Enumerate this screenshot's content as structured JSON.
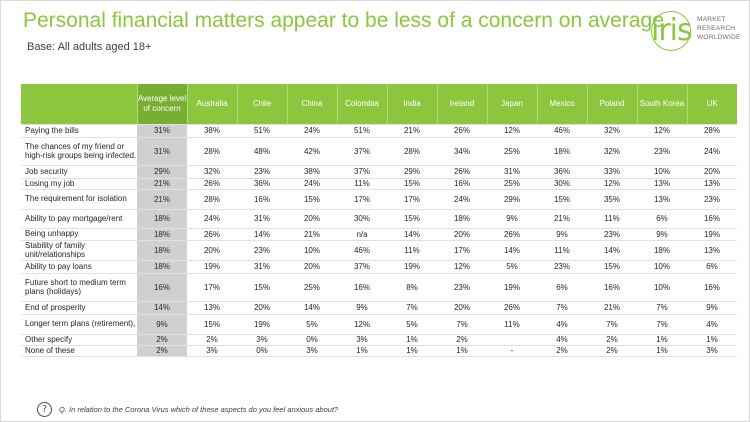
{
  "title": "Personal financial matters appear to be less of a concern on average",
  "subtitle": "Base: All adults aged 18+",
  "logo": {
    "mark": "iris",
    "lines": [
      "MARKET",
      "RESEARCH",
      "WORLDWIDE"
    ]
  },
  "colors": {
    "accent": "#8cc63f",
    "avg_column": "#d0d0d0"
  },
  "table": {
    "columns": [
      "Average level of concern",
      "Australia",
      "Chile",
      "China",
      "Colombia",
      "India",
      "Ireland",
      "Japan",
      "Mexico",
      "Poland",
      "South Korea",
      "UK"
    ],
    "rows": [
      {
        "label": "Paying the bills",
        "values": [
          "31%",
          "38%",
          "51%",
          "24%",
          "51%",
          "21%",
          "26%",
          "12%",
          "46%",
          "32%",
          "12%",
          "28%"
        ]
      },
      {
        "label": "The chances of my friend or high-risk groups being infected.",
        "values": [
          "31%",
          "28%",
          "48%",
          "42%",
          "37%",
          "28%",
          "34%",
          "25%",
          "18%",
          "32%",
          "23%",
          "24%"
        ]
      },
      {
        "label": "Job security",
        "values": [
          "29%",
          "32%",
          "23%",
          "38%",
          "37%",
          "29%",
          "26%",
          "31%",
          "36%",
          "33%",
          "10%",
          "20%"
        ]
      },
      {
        "label": "Losing my job",
        "values": [
          "21%",
          "26%",
          "36%",
          "24%",
          "11%",
          "15%",
          "16%",
          "25%",
          "30%",
          "12%",
          "13%",
          "13%"
        ]
      },
      {
        "label": "The requirement for isolation",
        "values": [
          "21%",
          "28%",
          "16%",
          "15%",
          "17%",
          "17%",
          "24%",
          "29%",
          "15%",
          "35%",
          "13%",
          "23%"
        ]
      },
      {
        "label": "Ability to pay mortgage/rent",
        "values": [
          "18%",
          "24%",
          "31%",
          "20%",
          "30%",
          "15%",
          "18%",
          "9%",
          "21%",
          "11%",
          "6%",
          "16%"
        ]
      },
      {
        "label": "Being unhappy",
        "values": [
          "18%",
          "26%",
          "14%",
          "21%",
          "n/a",
          "14%",
          "20%",
          "26%",
          "9%",
          "23%",
          "9%",
          "19%"
        ]
      },
      {
        "label": "Stability of family unit/relationships",
        "values": [
          "18%",
          "20%",
          "23%",
          "10%",
          "46%",
          "11%",
          "17%",
          "14%",
          "11%",
          "14%",
          "18%",
          "13%"
        ]
      },
      {
        "label": "Ability to pay loans",
        "values": [
          "18%",
          "19%",
          "31%",
          "20%",
          "37%",
          "19%",
          "12%",
          "5%",
          "23%",
          "15%",
          "10%",
          "6%"
        ]
      },
      {
        "label": "Future short to medium term plans (holidays)",
        "values": [
          "16%",
          "17%",
          "15%",
          "25%",
          "16%",
          "8%",
          "23%",
          "19%",
          "6%",
          "16%",
          "10%",
          "16%"
        ]
      },
      {
        "label": "End of prosperity",
        "values": [
          "14%",
          "13%",
          "20%",
          "14%",
          "9%",
          "7%",
          "20%",
          "26%",
          "7%",
          "21%",
          "7%",
          "9%"
        ]
      },
      {
        "label": "Longer term plans (retirement),",
        "values": [
          "9%",
          "15%",
          "19%",
          "5%",
          "12%",
          "5%",
          "7%",
          "11%",
          "4%",
          "7%",
          "7%",
          "4%"
        ]
      },
      {
        "label": "Other specify",
        "values": [
          "2%",
          "2%",
          "3%",
          "0%",
          "3%",
          "1%",
          "2%",
          "",
          "4%",
          "2%",
          "1%",
          "1%"
        ]
      },
      {
        "label": "None of these",
        "values": [
          "2%",
          "3%",
          "0%",
          "3%",
          "1%",
          "1%",
          "1%",
          "-",
          "2%",
          "2%",
          "1%",
          "3%"
        ]
      }
    ]
  },
  "footer": {
    "icon": "question-icon",
    "question": "Q. In relation to the Corona Virus which of these aspects do you feel anxious about?"
  }
}
